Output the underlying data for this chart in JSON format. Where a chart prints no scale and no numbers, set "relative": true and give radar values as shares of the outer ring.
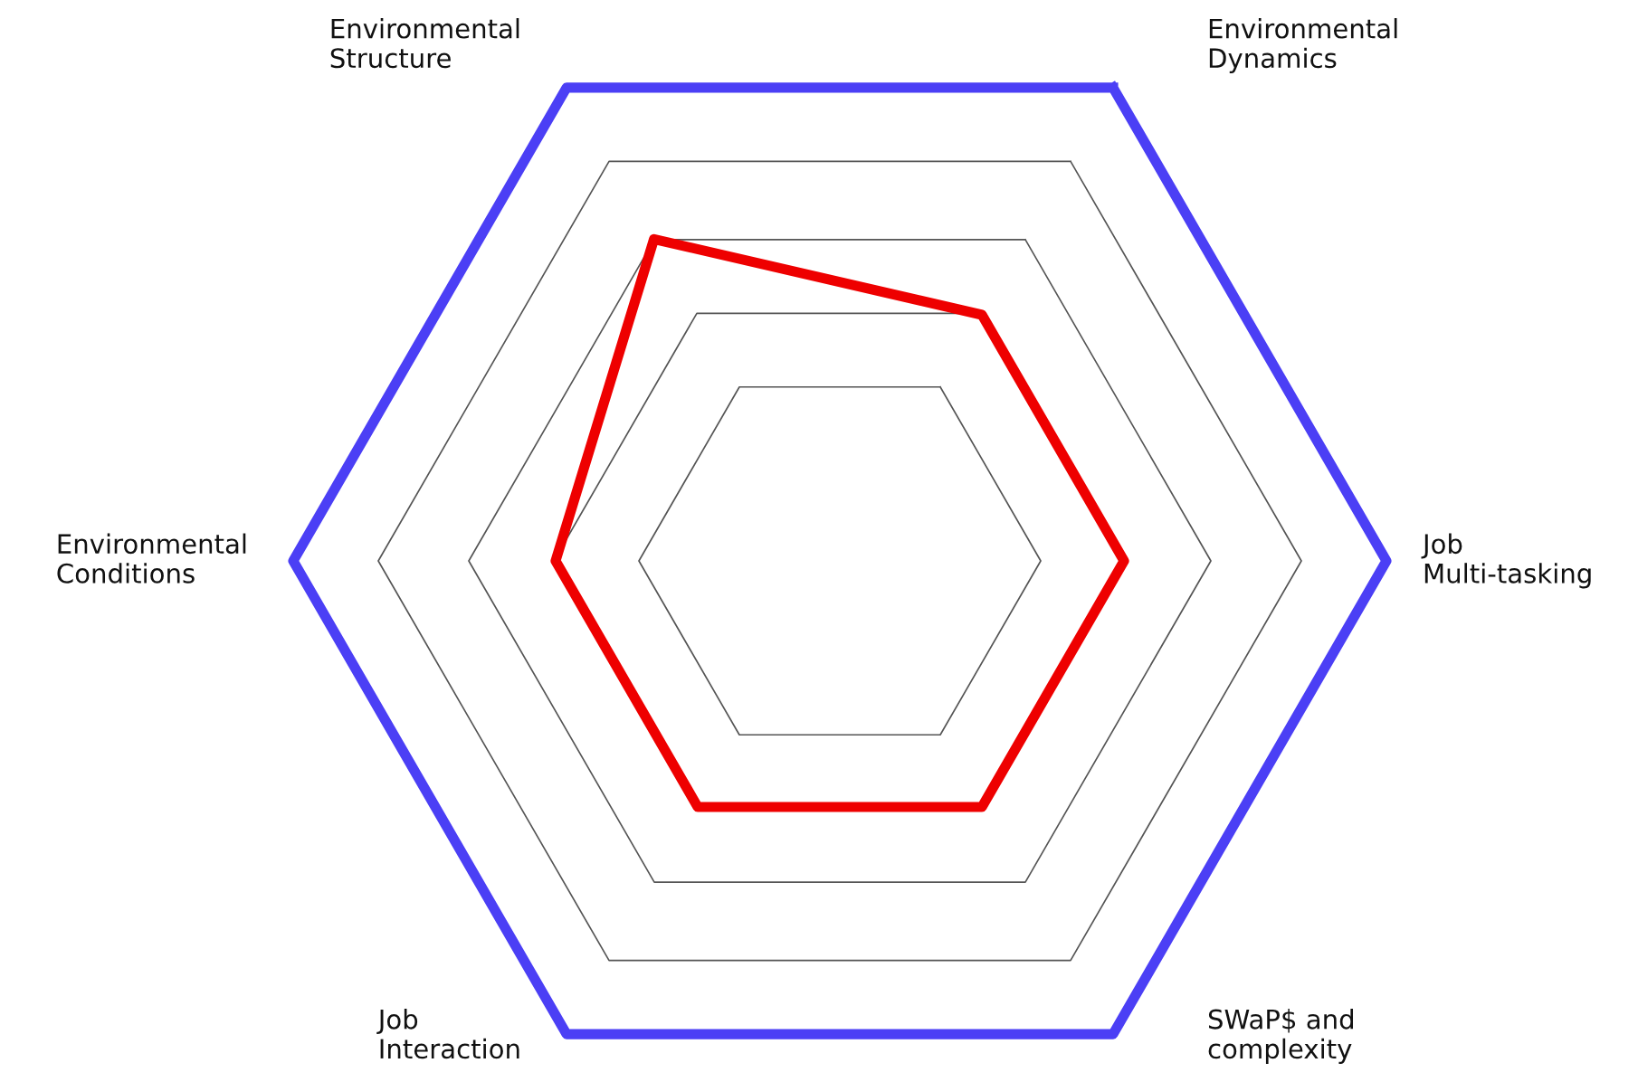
{
  "chart_data": {
    "type": "radar",
    "relative": true,
    "grid": true,
    "categories": [
      "Environmental\nDynamics",
      "Job\nMulti-tasking",
      "SWaP$ and\ncomplexity",
      "Job\nInteraction",
      "Environmental\nConditions",
      "Environmental\nStructure"
    ],
    "series": [
      {
        "color": "#ee0000",
        "values": [
          0.52,
          0.52,
          0.52,
          0.52,
          0.52,
          0.68
        ]
      }
    ]
  }
}
